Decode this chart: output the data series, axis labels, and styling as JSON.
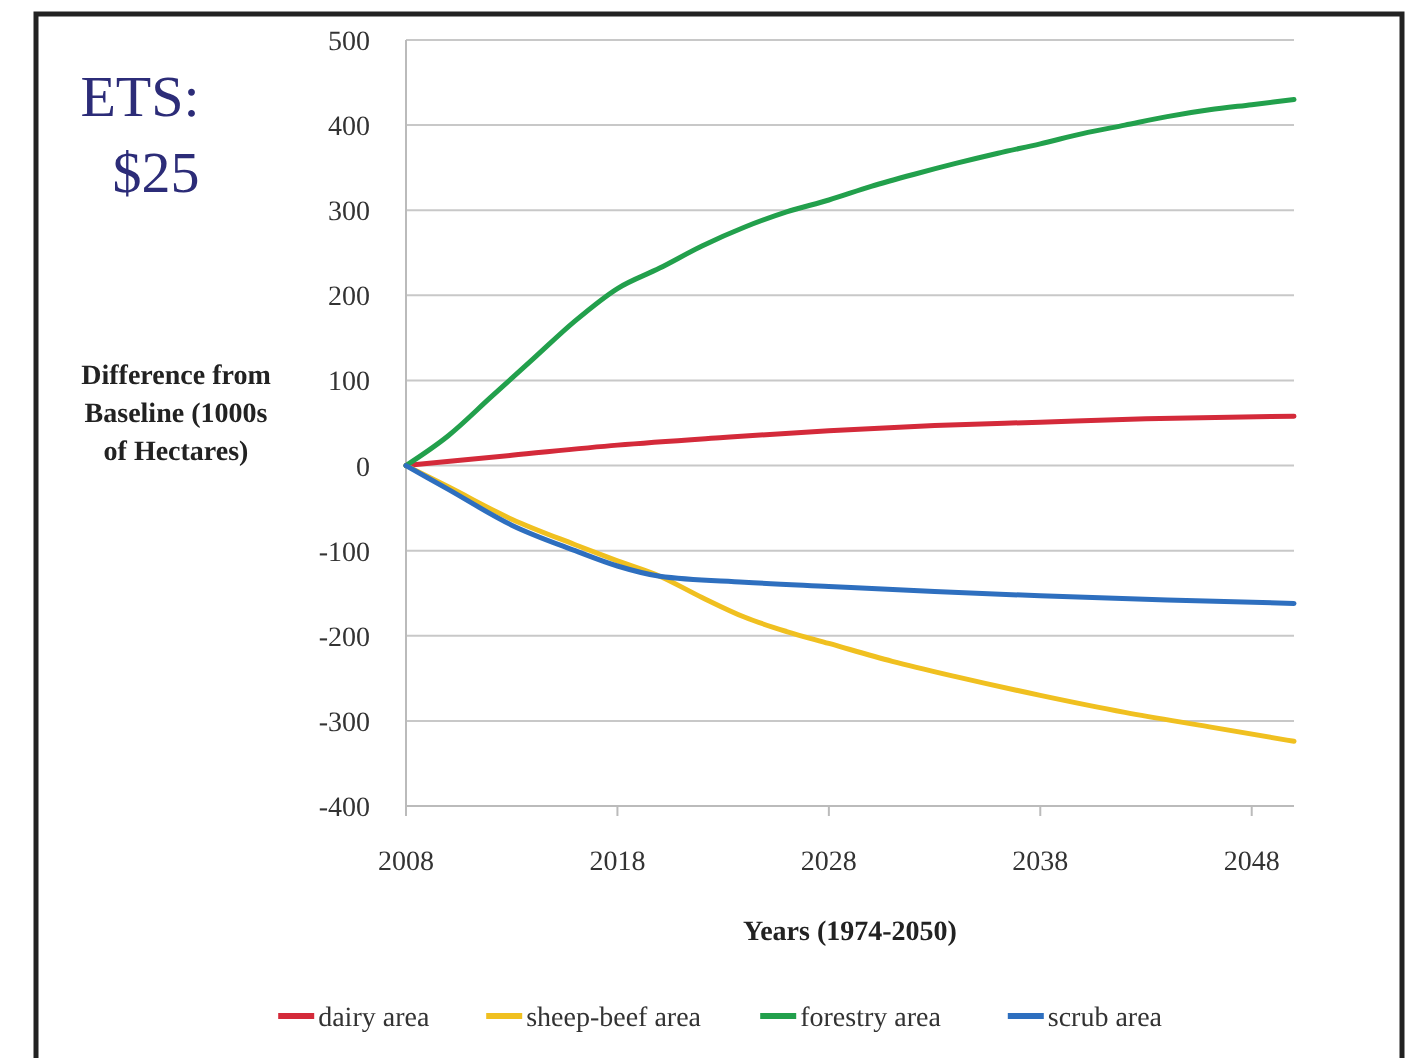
{
  "chart_data": {
    "type": "line",
    "title": "ETS: $25",
    "xlabel": "Years (1974-2050)",
    "ylabel": "Difference from Baseline (1000s of Hectares)",
    "xlim": [
      2008,
      2050
    ],
    "xticks": [
      2008,
      2018,
      2028,
      2038,
      2048
    ],
    "ylim": [
      -400,
      500
    ],
    "yticks": [
      -400,
      -300,
      -200,
      -100,
      0,
      100,
      200,
      300,
      400,
      500
    ],
    "grid": "y",
    "legend": "bottom",
    "marker": "none",
    "line_style": "solid",
    "series": [
      {
        "name": "dairy area",
        "color": "#d42a3a",
        "x": [
          2008,
          2013,
          2018,
          2023,
          2028,
          2033,
          2038,
          2043,
          2050
        ],
        "values": [
          0,
          12,
          24,
          33,
          41,
          47,
          51,
          55,
          58
        ]
      },
      {
        "name": "sheep-beef area",
        "color": "#f0c020",
        "x": [
          2008,
          2010,
          2013,
          2016,
          2018,
          2020,
          2022,
          2024,
          2026,
          2028,
          2031,
          2034,
          2038,
          2042,
          2046,
          2050
        ],
        "values": [
          0,
          -25,
          -63,
          -93,
          -112,
          -130,
          -155,
          -178,
          -195,
          -209,
          -230,
          -248,
          -270,
          -290,
          -307,
          -324
        ]
      },
      {
        "name": "forestry area",
        "color": "#22a04c",
        "x": [
          2008,
          2010,
          2012,
          2014,
          2016,
          2018,
          2020,
          2022,
          2024,
          2026,
          2028,
          2030,
          2032,
          2034,
          2036,
          2038,
          2040,
          2042,
          2044,
          2046,
          2048,
          2050
        ],
        "values": [
          0,
          35,
          80,
          125,
          170,
          208,
          232,
          258,
          280,
          298,
          312,
          328,
          342,
          355,
          367,
          378,
          390,
          400,
          410,
          418,
          424,
          430
        ]
      },
      {
        "name": "scrub area",
        "color": "#2e6fbf",
        "x": [
          2008,
          2010,
          2013,
          2016,
          2018,
          2020,
          2024,
          2028,
          2033,
          2038,
          2044,
          2050
        ],
        "values": [
          0,
          -28,
          -70,
          -100,
          -118,
          -130,
          -137,
          -142,
          -148,
          -153,
          -158,
          -162
        ]
      }
    ]
  }
}
